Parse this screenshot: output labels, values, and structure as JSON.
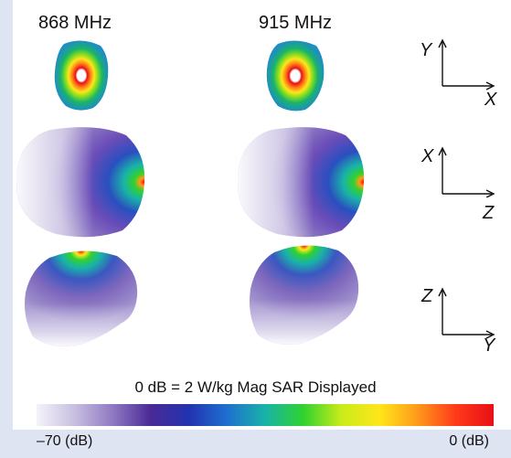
{
  "labels": {
    "freq_left": "868 MHz",
    "freq_right": "915 MHz"
  },
  "axes": [
    {
      "vertical": "Y",
      "horizontal": "X"
    },
    {
      "vertical": "X",
      "horizontal": "Z"
    },
    {
      "vertical": "Z",
      "horizontal": "Y"
    }
  ],
  "scale": {
    "caption": "0 dB = 2 W/kg Mag SAR Displayed",
    "min_label": "–70 (dB)",
    "max_label": "0 (dB)",
    "colors": [
      "#f4f3fa",
      "#c7bfe0",
      "#8f79c2",
      "#4a2a96",
      "#2233b0",
      "#1f6fd0",
      "#19b3a8",
      "#2fd22f",
      "#c9ec1a",
      "#ffe61a",
      "#ff9a1a",
      "#ff3a1a",
      "#e80f16"
    ]
  }
}
